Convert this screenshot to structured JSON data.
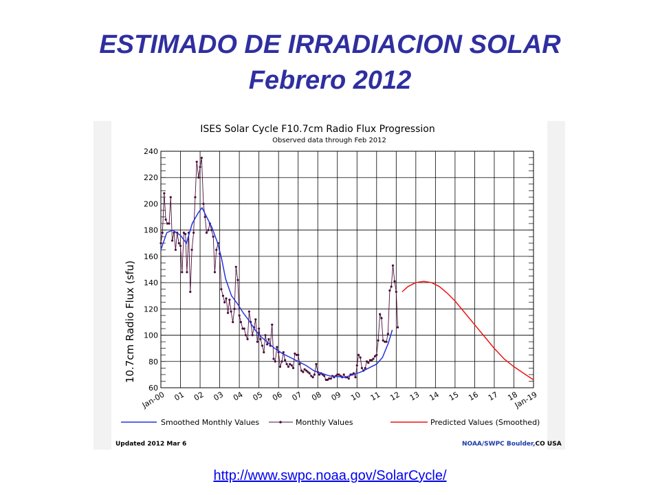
{
  "slide": {
    "title_line1": "ESTIMADO DE IRRADIACION SOLAR",
    "title_line2": "Febrero 2012",
    "link": "http://www.swpc.noaa.gov/SolarCycle/"
  },
  "colors": {
    "title": "#2f2fa0",
    "smoothed": "#2233dd",
    "monthly": "#4a0e3a",
    "predicted": "#ee1111",
    "grid": "#000000"
  },
  "chart_data": {
    "type": "line",
    "title": "ISES Solar Cycle F10.7cm Radio Flux Progression",
    "subtitle": "Observed data through Feb 2012",
    "ylabel": "10.7cm Radio Flux (sfu)",
    "ylim": [
      60,
      240
    ],
    "yticks": [
      60,
      80,
      100,
      120,
      140,
      160,
      180,
      200,
      220,
      240
    ],
    "xlim": [
      2000,
      2019
    ],
    "xtick_labels": [
      "Jan-00",
      "01",
      "02",
      "03",
      "04",
      "05",
      "06",
      "07",
      "08",
      "09",
      "10",
      "11",
      "12",
      "13",
      "14",
      "15",
      "16",
      "17",
      "18",
      "Jan-19"
    ],
    "grid": true,
    "legend": [
      "Smoothed Monthly Values",
      "Monthly Values",
      "Predicted Values (Smoothed)"
    ],
    "footer_left": "Updated 2012 Mar  6",
    "footer_right_a": "NOAA/SWPC Boulder,",
    "footer_right_b": "CO USA",
    "series": [
      {
        "name": "Monthly Values",
        "points": [
          [
            2000.0,
            170
          ],
          [
            2000.08,
            178
          ],
          [
            2000.17,
            208
          ],
          [
            2000.25,
            188
          ],
          [
            2000.33,
            185
          ],
          [
            2000.42,
            185
          ],
          [
            2000.5,
            205
          ],
          [
            2000.58,
            172
          ],
          [
            2000.67,
            178
          ],
          [
            2000.75,
            165
          ],
          [
            2000.83,
            178
          ],
          [
            2000.92,
            170
          ],
          [
            2001.0,
            168
          ],
          [
            2001.08,
            148
          ],
          [
            2001.17,
            178
          ],
          [
            2001.25,
            177
          ],
          [
            2001.33,
            148
          ],
          [
            2001.42,
            178
          ],
          [
            2001.5,
            133
          ],
          [
            2001.58,
            165
          ],
          [
            2001.67,
            178
          ],
          [
            2001.75,
            205
          ],
          [
            2001.83,
            232
          ],
          [
            2001.92,
            220
          ],
          [
            2002.0,
            228
          ],
          [
            2002.08,
            235
          ],
          [
            2002.17,
            200
          ],
          [
            2002.25,
            190
          ],
          [
            2002.33,
            178
          ],
          [
            2002.42,
            180
          ],
          [
            2002.5,
            185
          ],
          [
            2002.58,
            180
          ],
          [
            2002.67,
            175
          ],
          [
            2002.75,
            148
          ],
          [
            2002.83,
            165
          ],
          [
            2002.92,
            170
          ],
          [
            2003.0,
            162
          ],
          [
            2003.08,
            135
          ],
          [
            2003.17,
            130
          ],
          [
            2003.25,
            125
          ],
          [
            2003.33,
            128
          ],
          [
            2003.42,
            117
          ],
          [
            2003.5,
            127
          ],
          [
            2003.58,
            118
          ],
          [
            2003.67,
            110
          ],
          [
            2003.75,
            120
          ],
          [
            2003.83,
            152
          ],
          [
            2003.92,
            142
          ],
          [
            2004.0,
            115
          ],
          [
            2004.08,
            110
          ],
          [
            2004.17,
            105
          ],
          [
            2004.25,
            105
          ],
          [
            2004.33,
            100
          ],
          [
            2004.42,
            97
          ],
          [
            2004.5,
            118
          ],
          [
            2004.58,
            110
          ],
          [
            2004.67,
            100
          ],
          [
            2004.75,
            106
          ],
          [
            2004.83,
            112
          ],
          [
            2004.92,
            95
          ],
          [
            2005.0,
            105
          ],
          [
            2005.08,
            97
          ],
          [
            2005.17,
            92
          ],
          [
            2005.25,
            87
          ],
          [
            2005.33,
            100
          ],
          [
            2005.42,
            93
          ],
          [
            2005.5,
            97
          ],
          [
            2005.58,
            92
          ],
          [
            2005.67,
            108
          ],
          [
            2005.75,
            82
          ],
          [
            2005.83,
            80
          ],
          [
            2005.92,
            91
          ],
          [
            2006.0,
            87
          ],
          [
            2006.08,
            76
          ],
          [
            2006.17,
            80
          ],
          [
            2006.25,
            87
          ],
          [
            2006.33,
            81
          ],
          [
            2006.42,
            78
          ],
          [
            2006.5,
            76
          ],
          [
            2006.58,
            78
          ],
          [
            2006.67,
            77
          ],
          [
            2006.75,
            75
          ],
          [
            2006.83,
            86
          ],
          [
            2006.92,
            85
          ],
          [
            2007.0,
            85
          ],
          [
            2007.08,
            78
          ],
          [
            2007.17,
            73
          ],
          [
            2007.25,
            72
          ],
          [
            2007.33,
            74
          ],
          [
            2007.42,
            73
          ],
          [
            2007.5,
            72
          ],
          [
            2007.58,
            71
          ],
          [
            2007.67,
            69
          ],
          [
            2007.75,
            68
          ],
          [
            2007.83,
            70
          ],
          [
            2007.92,
            78
          ],
          [
            2008.0,
            72
          ],
          [
            2008.08,
            70
          ],
          [
            2008.17,
            71
          ],
          [
            2008.25,
            70
          ],
          [
            2008.33,
            69
          ],
          [
            2008.42,
            66
          ],
          [
            2008.5,
            66
          ],
          [
            2008.58,
            67
          ],
          [
            2008.67,
            67
          ],
          [
            2008.75,
            69
          ],
          [
            2008.83,
            68
          ],
          [
            2008.92,
            69
          ],
          [
            2009.0,
            70
          ],
          [
            2009.08,
            70
          ],
          [
            2009.17,
            69
          ],
          [
            2009.25,
            68
          ],
          [
            2009.33,
            70
          ],
          [
            2009.42,
            68
          ],
          [
            2009.5,
            68
          ],
          [
            2009.58,
            67
          ],
          [
            2009.67,
            70
          ],
          [
            2009.75,
            70
          ],
          [
            2009.83,
            71
          ],
          [
            2009.92,
            68
          ],
          [
            2010.0,
            77
          ],
          [
            2010.08,
            85
          ],
          [
            2010.17,
            83
          ],
          [
            2010.25,
            75
          ],
          [
            2010.33,
            73
          ],
          [
            2010.42,
            75
          ],
          [
            2010.5,
            80
          ],
          [
            2010.58,
            79
          ],
          [
            2010.67,
            81
          ],
          [
            2010.75,
            81
          ],
          [
            2010.83,
            82
          ],
          [
            2010.92,
            84
          ],
          [
            2011.0,
            85
          ],
          [
            2011.08,
            96
          ],
          [
            2011.17,
            116
          ],
          [
            2011.25,
            113
          ],
          [
            2011.33,
            96
          ],
          [
            2011.42,
            95
          ],
          [
            2011.5,
            95
          ],
          [
            2011.58,
            101
          ],
          [
            2011.67,
            134
          ],
          [
            2011.75,
            137
          ],
          [
            2011.83,
            153
          ],
          [
            2011.92,
            141
          ],
          [
            2012.0,
            133
          ],
          [
            2012.08,
            106
          ]
        ]
      },
      {
        "name": "Smoothed Monthly Values",
        "points": [
          [
            2000.0,
            165
          ],
          [
            2000.3,
            178
          ],
          [
            2000.6,
            180
          ],
          [
            2001.0,
            176
          ],
          [
            2001.3,
            170
          ],
          [
            2001.6,
            185
          ],
          [
            2001.9,
            193
          ],
          [
            2002.1,
            197
          ],
          [
            2002.3,
            191
          ],
          [
            2002.6,
            182
          ],
          [
            2002.9,
            170
          ],
          [
            2003.1,
            158
          ],
          [
            2003.3,
            143
          ],
          [
            2003.6,
            130
          ],
          [
            2003.9,
            124
          ],
          [
            2004.2,
            117
          ],
          [
            2004.5,
            111
          ],
          [
            2004.8,
            104
          ],
          [
            2005.1,
            99
          ],
          [
            2005.4,
            95
          ],
          [
            2005.8,
            90
          ],
          [
            2006.2,
            86
          ],
          [
            2006.6,
            83
          ],
          [
            2007.0,
            80
          ],
          [
            2007.4,
            77
          ],
          [
            2007.8,
            73
          ],
          [
            2008.2,
            71
          ],
          [
            2008.6,
            69
          ],
          [
            2009.0,
            68.5
          ],
          [
            2009.4,
            68
          ],
          [
            2009.8,
            70
          ],
          [
            2010.2,
            72
          ],
          [
            2010.6,
            75
          ],
          [
            2011.0,
            78
          ],
          [
            2011.3,
            83
          ],
          [
            2011.6,
            94
          ],
          [
            2011.8,
            104
          ]
        ]
      },
      {
        "name": "Predicted Values (Smoothed)",
        "points": [
          [
            2012.3,
            133
          ],
          [
            2012.6,
            137
          ],
          [
            2013.0,
            140
          ],
          [
            2013.4,
            141
          ],
          [
            2013.8,
            140
          ],
          [
            2014.2,
            137
          ],
          [
            2014.6,
            132
          ],
          [
            2015.0,
            126
          ],
          [
            2015.5,
            117
          ],
          [
            2016.0,
            108
          ],
          [
            2016.5,
            99
          ],
          [
            2017.0,
            90
          ],
          [
            2017.5,
            82
          ],
          [
            2018.0,
            76
          ],
          [
            2018.5,
            71
          ],
          [
            2019.0,
            66
          ]
        ]
      }
    ]
  }
}
